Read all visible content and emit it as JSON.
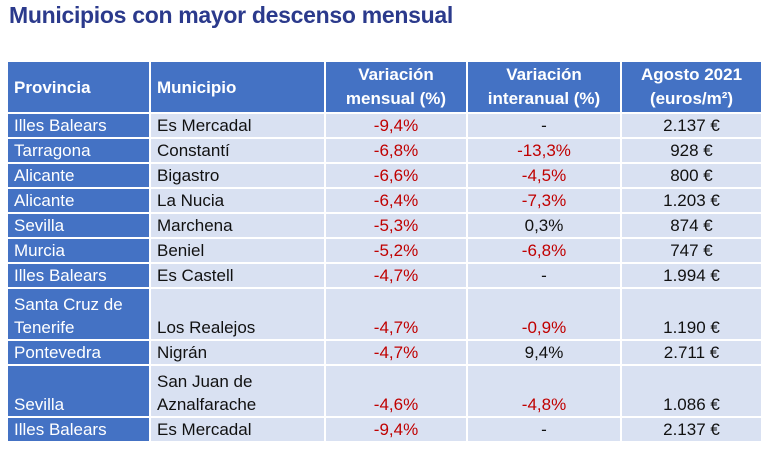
{
  "title": "Municipios con mayor descenso mensual",
  "headers": {
    "provincia": "Provincia",
    "municipio": "Municipio",
    "var_mensual": [
      "Variación",
      "mensual (%)"
    ],
    "var_interanual": [
      "Variación",
      "interanual (%)"
    ],
    "agosto": [
      "Agosto 2021",
      "(euros/m²)"
    ]
  },
  "colors": {
    "header_bg": "#4472c4",
    "cell_bg": "#d9e1f2",
    "negative": "#c00000",
    "title": "#2b3a8c"
  },
  "rows": [
    {
      "provincia": [
        "Illes Balears"
      ],
      "municipio": [
        "Es Mercadal"
      ],
      "mensual": "-9,4%",
      "interanual": "-",
      "precio": "2.137 €"
    },
    {
      "provincia": [
        "Tarragona"
      ],
      "municipio": [
        "Constantí"
      ],
      "mensual": "-6,8%",
      "interanual": "-13,3%",
      "precio": "928 €"
    },
    {
      "provincia": [
        "Alicante"
      ],
      "municipio": [
        "Bigastro"
      ],
      "mensual": "-6,6%",
      "interanual": "-4,5%",
      "precio": "800 €"
    },
    {
      "provincia": [
        "Alicante"
      ],
      "municipio": [
        "La Nucia"
      ],
      "mensual": "-6,4%",
      "interanual": "-7,3%",
      "precio": "1.203 €"
    },
    {
      "provincia": [
        "Sevilla"
      ],
      "municipio": [
        "Marchena"
      ],
      "mensual": "-5,3%",
      "interanual": "0,3%",
      "precio": "874 €"
    },
    {
      "provincia": [
        "Murcia"
      ],
      "municipio": [
        "Beniel"
      ],
      "mensual": "-5,2%",
      "interanual": "-6,8%",
      "precio": "747 €"
    },
    {
      "provincia": [
        "Illes Balears"
      ],
      "municipio": [
        "Es Castell"
      ],
      "mensual": "-4,7%",
      "interanual": "-",
      "precio": "1.994 €"
    },
    {
      "provincia": [
        "Santa Cruz de",
        "Tenerife"
      ],
      "municipio": [
        "Los Realejos"
      ],
      "mensual": "-4,7%",
      "interanual": "-0,9%",
      "precio": "1.190 €"
    },
    {
      "provincia": [
        "Pontevedra"
      ],
      "municipio": [
        "Nigrán"
      ],
      "mensual": "-4,7%",
      "interanual": "9,4%",
      "precio": "2.711 €"
    },
    {
      "provincia": [
        "Sevilla"
      ],
      "municipio": [
        "San Juan de",
        "Aznalfarache"
      ],
      "mensual": "-4,6%",
      "interanual": "-4,8%",
      "precio": "1.086 €"
    },
    {
      "provincia": [
        "Illes Balears"
      ],
      "municipio": [
        "Es Mercadal"
      ],
      "mensual": "-9,4%",
      "interanual": "-",
      "precio": "2.137 €"
    }
  ]
}
